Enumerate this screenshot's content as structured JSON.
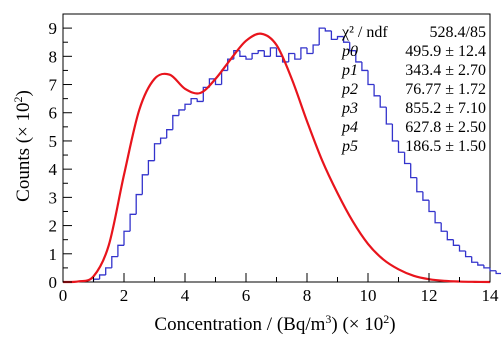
{
  "chart_data": {
    "type": "histogram",
    "xlabel": {
      "text": "Concentration / (Bq/m",
      "superscript": "3",
      "suffix": ") (",
      "multiplier": "× 10",
      "multiplier_exp": "2",
      "close": ")"
    },
    "ylabel": {
      "text": "Counts (",
      "multiplier": "× 10",
      "multiplier_exp": "2",
      "close": ")"
    },
    "xlim": [
      0,
      14
    ],
    "ylim": [
      0,
      9.5
    ],
    "x_ticks": [
      "0",
      "2",
      "4",
      "6",
      "8",
      "10",
      "12",
      "14"
    ],
    "y_ticks": [
      "0",
      "1",
      "2",
      "3",
      "4",
      "5",
      "6",
      "7",
      "8",
      "9"
    ],
    "colors": {
      "histogram": "#3333cc",
      "fit": "#e8141c",
      "axes": "#000000"
    },
    "histogram": {
      "name": "data",
      "bin_width": 0.2,
      "x_start": 1.0,
      "counts": [
        0.1,
        0.25,
        0.5,
        0.9,
        1.3,
        1.8,
        2.4,
        3.1,
        3.8,
        4.3,
        4.9,
        5.1,
        5.4,
        5.9,
        6.1,
        6.3,
        6.5,
        6.4,
        6.9,
        7.2,
        7.0,
        7.5,
        7.9,
        8.2,
        8.0,
        7.9,
        8.1,
        8.2,
        8.0,
        8.3,
        8.0,
        7.8,
        8.1,
        7.9,
        8.3,
        8.1,
        8.4,
        9.0,
        8.9,
        8.6,
        8.7,
        8.5,
        8.2,
        7.8,
        7.5,
        7.0,
        6.6,
        6.2,
        5.6,
        5.0,
        4.6,
        4.2,
        3.7,
        3.2,
        2.9,
        2.5,
        2.1,
        1.8,
        1.5,
        1.3,
        1.1,
        0.9,
        0.7,
        0.6,
        0.5,
        0.4,
        0.3,
        0.3,
        0.2,
        0.2,
        0.15,
        0.1,
        0.1,
        0.05,
        0.05,
        0.05
      ]
    },
    "fit": {
      "name": "fit",
      "model": "two-gaussian-on-log-normal (6-parameter)",
      "x": [
        0.0,
        0.5,
        1.0,
        1.5,
        2.0,
        2.5,
        3.0,
        3.5,
        4.0,
        4.5,
        5.0,
        5.5,
        6.0,
        6.5,
        7.0,
        7.5,
        8.0,
        8.5,
        9.0,
        9.5,
        10.0,
        10.5,
        11.0,
        11.5,
        12.0,
        12.5,
        13.0,
        13.5,
        14.0
      ],
      "y": [
        0.0,
        0.02,
        0.2,
        1.3,
        3.8,
        6.1,
        7.2,
        7.35,
        6.85,
        6.7,
        7.2,
        7.9,
        8.55,
        8.8,
        8.4,
        7.2,
        5.7,
        4.3,
        3.15,
        2.15,
        1.35,
        0.8,
        0.45,
        0.22,
        0.1,
        0.04,
        0.015,
        0.005,
        0.0
      ]
    },
    "stats": [
      {
        "name": "χ² / ndf",
        "value": "528.4/85"
      },
      {
        "name": "p0",
        "value": "495.9 ± 12.4"
      },
      {
        "name": "p1",
        "value": "343.4 ± 2.70"
      },
      {
        "name": "p2",
        "value": "76.77 ± 1.72"
      },
      {
        "name": "p3",
        "value": "855.2 ± 7.10"
      },
      {
        "name": "p4",
        "value": "627.8 ± 2.50"
      },
      {
        "name": "p5",
        "value": "186.5 ± 1.50"
      }
    ]
  }
}
